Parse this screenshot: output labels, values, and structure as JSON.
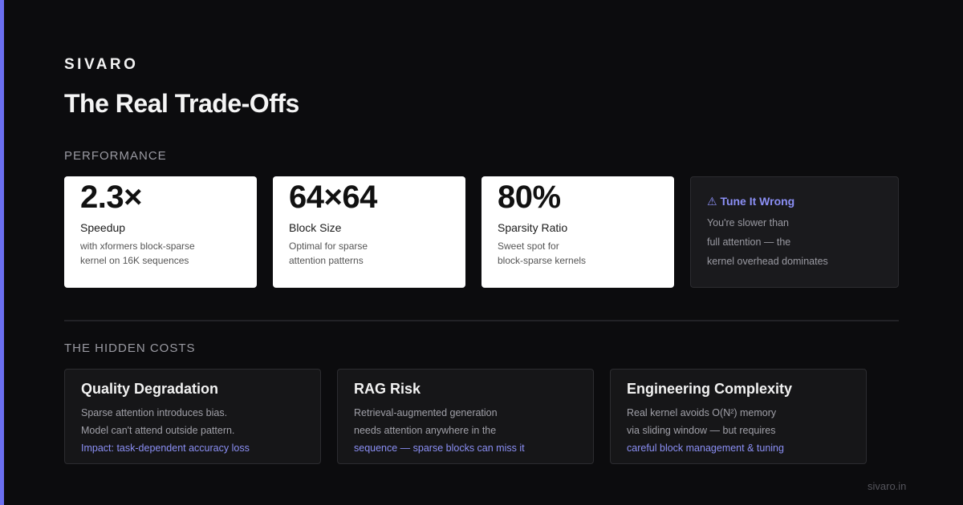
{
  "brand": "SIVARO",
  "title": "The Real Trade-Offs",
  "performance": {
    "heading": "PERFORMANCE",
    "stats": [
      {
        "value": "2.3×",
        "label": "Speedup",
        "lines": [
          "with xformers block-sparse",
          "kernel on 16K sequences"
        ]
      },
      {
        "value": "64×64",
        "label": "Block Size",
        "lines": [
          "Optimal for sparse",
          "attention patterns"
        ]
      },
      {
        "value": "80%",
        "label": "Sparsity Ratio",
        "lines": [
          "Sweet spot for",
          "block-sparse kernels"
        ]
      }
    ],
    "warning": {
      "title": "⚠ Tune It Wrong",
      "lines": [
        "You're slower than",
        "full attention — the",
        "kernel overhead dominates"
      ]
    }
  },
  "hidden_costs": {
    "heading": "THE HIDDEN COSTS",
    "cards": [
      {
        "title": "Quality Degradation",
        "lines": [
          "Sparse attention introduces bias.",
          "Model can't attend outside pattern."
        ],
        "highlight": "Impact: task-dependent accuracy loss"
      },
      {
        "title": "RAG Risk",
        "lines": [
          "Retrieval-augmented generation",
          "needs attention anywhere in the"
        ],
        "highlight": "sequence — sparse blocks can miss it"
      },
      {
        "title": "Engineering Complexity",
        "lines": [
          "Real kernel avoids O(N²) memory",
          "via sliding window — but requires"
        ],
        "highlight": "careful block management & tuning"
      }
    ]
  },
  "footer": "sivaro.in"
}
